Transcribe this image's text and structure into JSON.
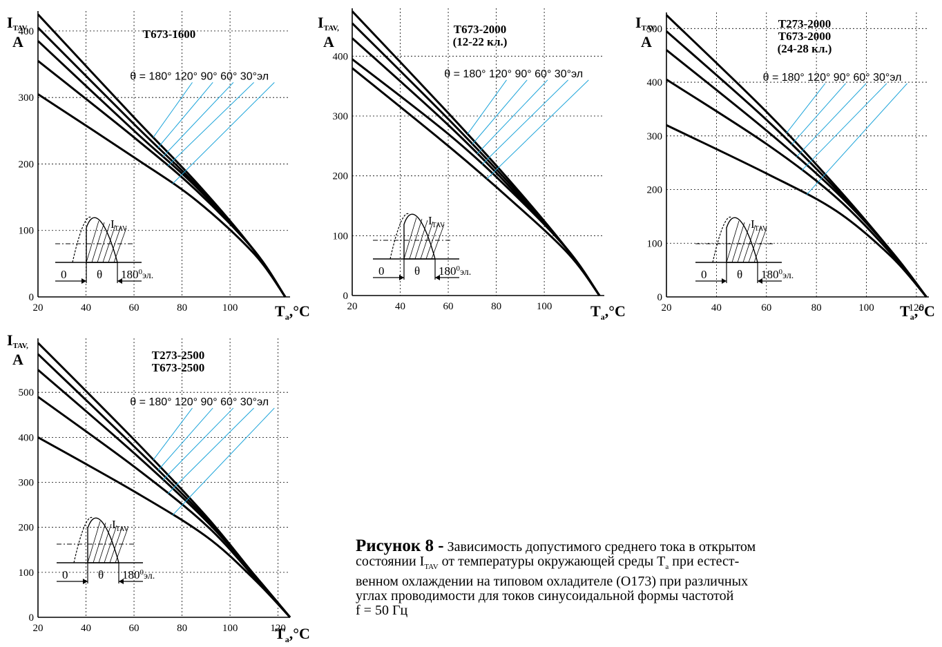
{
  "colors": {
    "curve": "#000000",
    "leader": "#1aa3d9"
  },
  "chart_data": [
    {
      "type": "line",
      "title": "T673-1600",
      "ylabel": "I_TAV, A",
      "xlabel": "T_a, °C",
      "xlim": [
        20,
        125
      ],
      "ylim": [
        0,
        430
      ],
      "xticks": [
        20,
        40,
        60,
        80,
        100
      ],
      "yticks": [
        0,
        100,
        200,
        300,
        400
      ],
      "angle_label": "θ = 180° 120° 90° 60° 30°эл",
      "grid": true,
      "series": [
        {
          "name": "180°",
          "x": [
            20,
            60,
            86,
            110,
            123
          ],
          "y": [
            425,
            270,
            172,
            70,
            0
          ]
        },
        {
          "name": "120°",
          "x": [
            20,
            60,
            86,
            110,
            123
          ],
          "y": [
            405,
            260,
            168,
            70,
            0
          ]
        },
        {
          "name": "90°",
          "x": [
            20,
            60,
            86,
            110,
            123
          ],
          "y": [
            385,
            250,
            165,
            70,
            0
          ]
        },
        {
          "name": "60°",
          "x": [
            20,
            60,
            86,
            110,
            123
          ],
          "y": [
            355,
            240,
            160,
            70,
            0
          ]
        },
        {
          "name": "30°",
          "x": [
            20,
            60,
            86,
            110,
            123
          ],
          "y": [
            305,
            210,
            145,
            65,
            0
          ]
        }
      ],
      "inset": {
        "current": "I",
        "current_sub": "TAV",
        "zero": "0",
        "theta": "θ",
        "end": "180",
        "end_sup": "0",
        "end_unit": "эл."
      }
    },
    {
      "type": "line",
      "title": "T673-2000",
      "subtitle": "(12-22 кл.)",
      "ylabel": "I_TAV, A",
      "xlabel": "T_a, °C",
      "xlim": [
        20,
        125
      ],
      "ylim": [
        0,
        480
      ],
      "xticks": [
        20,
        40,
        60,
        80,
        100
      ],
      "yticks": [
        0,
        100,
        200,
        300,
        400
      ],
      "angle_label": "θ = 180° 120° 90° 60° 30°эл",
      "grid": true,
      "series": [
        {
          "name": "180°",
          "x": [
            20,
            60,
            86,
            110,
            123
          ],
          "y": [
            475,
            305,
            190,
            75,
            0
          ]
        },
        {
          "name": "120°",
          "x": [
            20,
            60,
            86,
            110,
            123
          ],
          "y": [
            455,
            295,
            185,
            75,
            0
          ]
        },
        {
          "name": "90°",
          "x": [
            20,
            60,
            86,
            110,
            123
          ],
          "y": [
            430,
            285,
            180,
            75,
            0
          ]
        },
        {
          "name": "60°",
          "x": [
            20,
            60,
            86,
            110,
            123
          ],
          "y": [
            395,
            270,
            175,
            75,
            0
          ]
        },
        {
          "name": "30°",
          "x": [
            20,
            60,
            86,
            110,
            123
          ],
          "y": [
            380,
            250,
            160,
            70,
            0
          ]
        }
      ],
      "inset": {
        "current": "I",
        "current_sub": "TAV",
        "zero": "0",
        "theta": "θ",
        "end": "180",
        "end_sup": "0",
        "end_unit": "эл."
      }
    },
    {
      "type": "line",
      "title": "T273-2000",
      "subtitle": "T673-2000",
      "subtitle2": "(24-28 кл.)",
      "ylabel": "I_TAV, A",
      "xlabel": "T_a, °C",
      "xlim": [
        20,
        125
      ],
      "ylim": [
        0,
        530
      ],
      "xticks": [
        20,
        40,
        60,
        80,
        100,
        120
      ],
      "yticks": [
        0,
        100,
        200,
        300,
        400,
        500
      ],
      "angle_label": "θ = 180° 120° 90° 60° 30°эл",
      "grid": true,
      "series": [
        {
          "name": "180°",
          "x": [
            20,
            60,
            88,
            110,
            124
          ],
          "y": [
            525,
            345,
            205,
            85,
            0
          ]
        },
        {
          "name": "120°",
          "x": [
            20,
            60,
            88,
            110,
            124
          ],
          "y": [
            495,
            330,
            200,
            85,
            0
          ]
        },
        {
          "name": "90°",
          "x": [
            20,
            60,
            88,
            110,
            124
          ],
          "y": [
            460,
            310,
            195,
            85,
            0
          ]
        },
        {
          "name": "60°",
          "x": [
            20,
            60,
            88,
            110,
            124
          ],
          "y": [
            405,
            285,
            185,
            80,
            0
          ]
        },
        {
          "name": "30°",
          "x": [
            20,
            60,
            88,
            110,
            124
          ],
          "y": [
            320,
            230,
            160,
            75,
            0
          ]
        }
      ],
      "inset": {
        "current": "I",
        "current_sub": "TAV",
        "zero": "0",
        "theta": "θ",
        "end": "180",
        "end_sup": "0",
        "end_unit": "эл."
      }
    },
    {
      "type": "line",
      "title": "T273-2500",
      "subtitle": "T673-2500",
      "ylabel": "I_TAV, A",
      "xlabel": "T_a, °C",
      "xlim": [
        20,
        125
      ],
      "ylim": [
        0,
        620
      ],
      "xticks": [
        20,
        40,
        60,
        80,
        100,
        120
      ],
      "yticks": [
        0,
        100,
        200,
        300,
        400,
        500
      ],
      "angle_label": "θ = 180° 120° 90° 60° 30°эл",
      "grid": true,
      "series": [
        {
          "name": "180°",
          "x": [
            20,
            60,
            90,
            110,
            125
          ],
          "y": [
            610,
            395,
            225,
            95,
            0
          ]
        },
        {
          "name": "120°",
          "x": [
            20,
            60,
            90,
            110,
            125
          ],
          "y": [
            585,
            380,
            220,
            95,
            0
          ]
        },
        {
          "name": "90°",
          "x": [
            20,
            60,
            90,
            110,
            125
          ],
          "y": [
            550,
            365,
            215,
            95,
            0
          ]
        },
        {
          "name": "60°",
          "x": [
            20,
            60,
            90,
            110,
            125
          ],
          "y": [
            490,
            335,
            205,
            90,
            0
          ]
        },
        {
          "name": "30°",
          "x": [
            20,
            60,
            90,
            110,
            125
          ],
          "y": [
            400,
            280,
            180,
            85,
            0
          ]
        }
      ],
      "inset": {
        "current": "I",
        "current_sub": "TAV",
        "zero": "0",
        "theta": "θ",
        "end": "180",
        "end_sup": "0",
        "end_unit": "эл."
      }
    }
  ],
  "caption": {
    "figure": "Рисунок 8 -",
    "text1": "Зависимость допустимого среднего тока в открытом",
    "text2a": "состоянии I",
    "text2sub": "TAV",
    "text2b": " от температуры  окружающей среды T",
    "text2sub2": "a",
    "text2c": " при естест-",
    "text3": "венном охлаждении на типовом охладителе (О173) при различных",
    "text4": "углах  проводимости  для токов синусоидальной формы частотой",
    "text5": " f = 50 Гц"
  }
}
